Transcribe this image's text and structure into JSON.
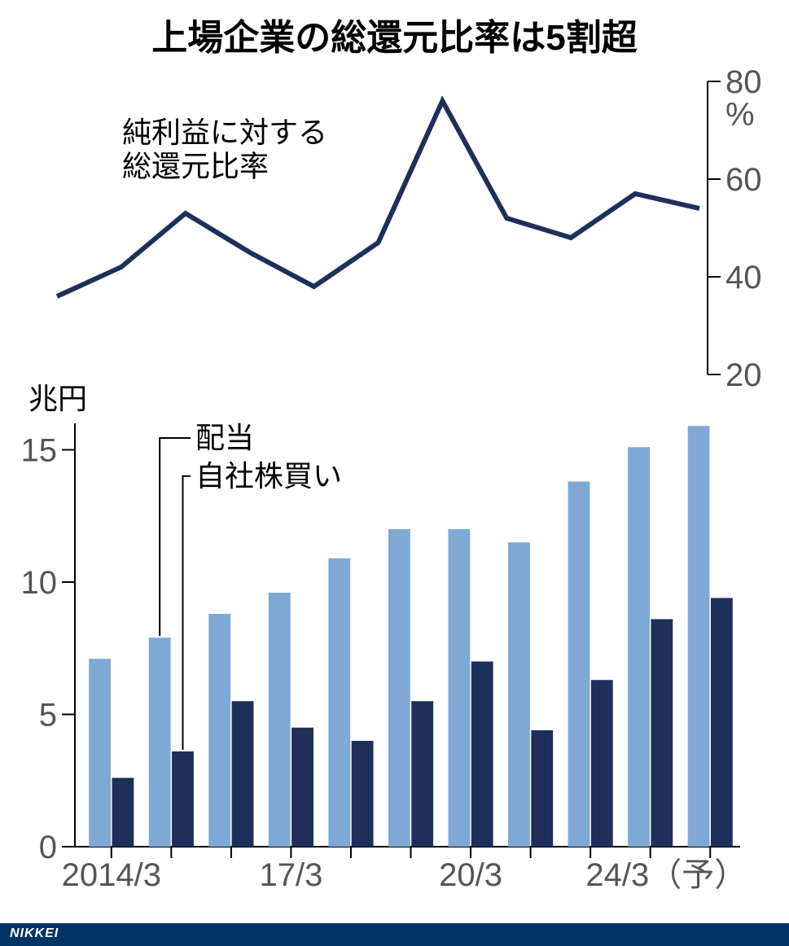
{
  "title": "上場企業の総還元比率は5割超",
  "title_fontsize": 44,
  "title_color": "#000000",
  "footer_text": "NIKKEI",
  "line_chart": {
    "label": "純利益に対する\n総還元比率",
    "label_fontsize": 36,
    "axis": {
      "right_unit": "%",
      "ymin": 20,
      "ymax": 80,
      "yticks": [
        20,
        40,
        60,
        80
      ],
      "tick_fontsize": 40,
      "tick_color": "#555555",
      "axis_color": "#000000",
      "tick_mark_len": 16
    },
    "values": [
      36,
      42,
      53,
      45,
      38,
      47,
      76,
      52,
      48,
      57,
      54
    ],
    "line_color": "#1e2f5a",
    "line_width": 6
  },
  "bar_chart": {
    "left_unit": "兆円",
    "left_unit_fontsize": 36,
    "axis": {
      "ymin": 0,
      "ymax": 16,
      "yticks": [
        0,
        5,
        10,
        15
      ],
      "tick_fontsize": 40,
      "tick_color": "#555555",
      "axis_color": "#000000",
      "tick_mark_len": 16
    },
    "xaxis": {
      "labels": [
        "2014/3",
        "17/3",
        "20/3",
        "24/3（予）"
      ],
      "positions_index": [
        0,
        3,
        6,
        10
      ],
      "fontsize": 40,
      "color": "#555555"
    },
    "series": [
      {
        "name": "配当",
        "label": "配当",
        "color": "#7fa9d4",
        "values": [
          7.1,
          7.9,
          8.8,
          9.6,
          10.9,
          12.0,
          12.0,
          11.5,
          13.8,
          15.1,
          15.9
        ]
      },
      {
        "name": "自社株買い",
        "label": "自社株買い",
        "color": "#1e2f5a",
        "values": [
          2.6,
          3.6,
          5.5,
          4.5,
          4.0,
          5.5,
          7.0,
          4.4,
          6.3,
          8.6,
          9.4
        ]
      }
    ],
    "series_label_fontsize": 36,
    "bar_group_width": 0.75,
    "bar_gap_within": 0.02
  },
  "background_color": "#ffffff",
  "callout_line_color": "#000000",
  "callout_line_width": 2
}
